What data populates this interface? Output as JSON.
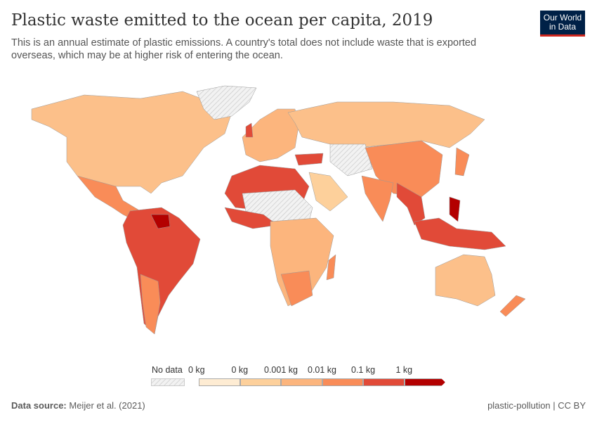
{
  "header": {
    "title": "Plastic waste emitted to the ocean per capita, 2019",
    "subtitle": "This is an annual estimate of plastic emissions. A country's total does not include waste that is exported overseas, which may be at higher risk of entering the ocean.",
    "logo": "Our World in Data"
  },
  "legend": {
    "no_data": "No data",
    "bins": [
      {
        "label": "0 kg",
        "color": "#feecd3"
      },
      {
        "label": "0 kg",
        "color": "#fdd09b"
      },
      {
        "label": "0.001 kg",
        "color": "#fcb57d"
      },
      {
        "label": "0.01 kg",
        "color": "#f98c58"
      },
      {
        "label": "0.1 kg",
        "color": "#e14a38"
      },
      {
        "label": "1 kg",
        "color": "#b30000"
      }
    ]
  },
  "footer": {
    "source_label": "Data source:",
    "source": "Meijer et al. (2021)",
    "right": "plastic-pollution | CC BY"
  }
}
